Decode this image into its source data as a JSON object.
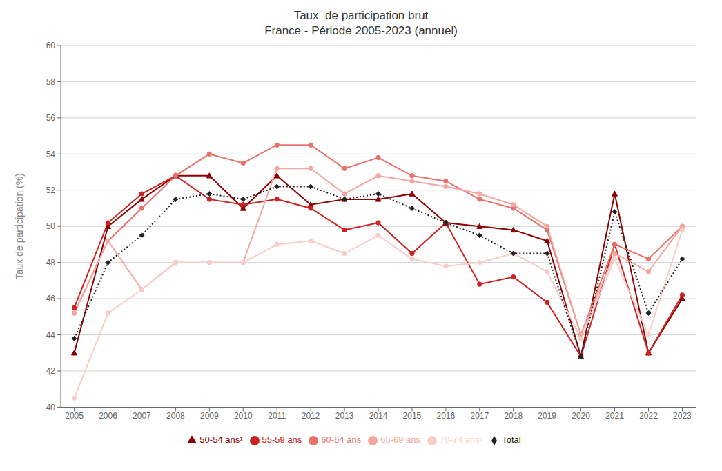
{
  "chart_data": {
    "type": "line",
    "title": "Taux  de participation brut",
    "subtitle": "France - Période 2005-2023 (annuel)",
    "y_label": "Taux de participation (%)",
    "x": [
      2005,
      2006,
      2007,
      2008,
      2009,
      2010,
      2011,
      2012,
      2013,
      2014,
      2015,
      2016,
      2017,
      2018,
      2019,
      2020,
      2021,
      2022,
      2023
    ],
    "xlim": [
      2004.6,
      2023.4
    ],
    "xticks": [
      2005,
      2006,
      2007,
      2008,
      2009,
      2010,
      2011,
      2012,
      2013,
      2014,
      2015,
      2016,
      2017,
      2018,
      2019,
      2020,
      2021,
      2022,
      2023
    ],
    "ylim": [
      40,
      60
    ],
    "yticks": [
      40,
      42,
      44,
      46,
      48,
      50,
      52,
      54,
      56,
      58,
      60
    ],
    "grid": true,
    "legend": "bottom",
    "series": [
      {
        "name": "50-54 ans¹",
        "color": "#8B0000",
        "marker": "triangle",
        "line_style": "solid",
        "values": [
          43.0,
          50.0,
          51.5,
          52.8,
          52.8,
          51.0,
          52.8,
          51.2,
          51.5,
          51.5,
          51.8,
          50.2,
          50.0,
          49.8,
          49.2,
          42.8,
          51.8,
          43.0,
          46.0
        ]
      },
      {
        "name": "55-59 ans",
        "color": "#CC2222",
        "marker": "circle",
        "line_style": "solid",
        "values": [
          45.5,
          50.2,
          51.8,
          52.8,
          51.5,
          51.2,
          51.5,
          51.0,
          49.8,
          50.2,
          48.5,
          50.2,
          46.8,
          47.2,
          45.8,
          42.8,
          49.0,
          43.0,
          46.2
        ]
      },
      {
        "name": "60-64 ans",
        "color": "#E8726A",
        "marker": "circle",
        "line_style": "solid",
        "values": [
          45.2,
          49.2,
          51.0,
          52.8,
          54.0,
          53.5,
          54.5,
          54.5,
          53.2,
          53.8,
          52.8,
          52.5,
          51.5,
          51.0,
          49.8,
          44.0,
          49.0,
          48.2,
          50.0
        ]
      },
      {
        "name": "65-69 ans",
        "color": "#F4A6A0",
        "marker": "circle",
        "line_style": "solid",
        "values": [
          45.2,
          49.2,
          46.5,
          48.0,
          48.0,
          48.0,
          53.2,
          53.2,
          51.8,
          52.8,
          52.5,
          52.2,
          51.8,
          51.2,
          50.0,
          44.0,
          48.5,
          47.5,
          50.0
        ]
      },
      {
        "name": "70-74 ans²",
        "color": "#FACCC6",
        "marker": "circle",
        "line_style": "solid",
        "values": [
          40.5,
          45.2,
          46.5,
          48.0,
          48.0,
          48.0,
          49.0,
          49.2,
          48.5,
          49.5,
          48.2,
          47.8,
          48.0,
          48.5,
          47.5,
          43.8,
          48.2,
          44.0,
          49.8
        ]
      },
      {
        "name": "Total",
        "color": "#222222",
        "marker": "diamond",
        "line_style": "dotted",
        "values": [
          43.8,
          48.0,
          49.5,
          51.5,
          51.8,
          51.5,
          52.2,
          52.2,
          51.5,
          51.8,
          51.0,
          50.2,
          49.5,
          48.5,
          48.5,
          42.8,
          50.8,
          45.2,
          48.2
        ]
      }
    ]
  }
}
